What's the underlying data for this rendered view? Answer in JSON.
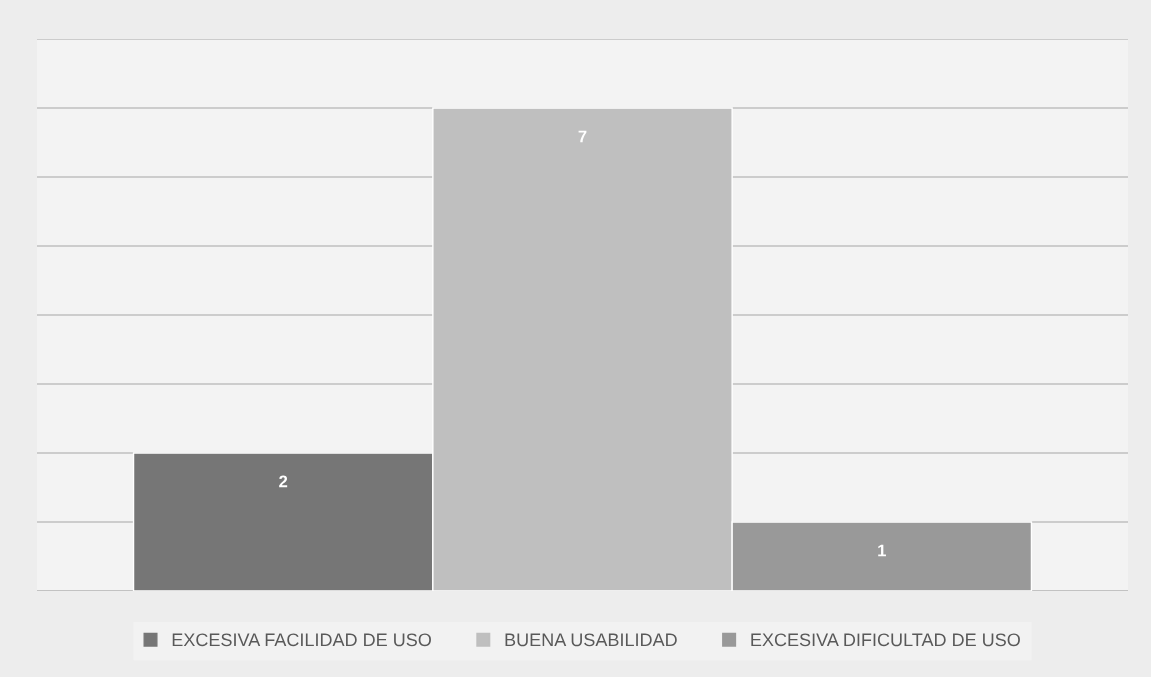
{
  "chart_data": {
    "type": "bar",
    "categories": [
      null
    ],
    "series": [
      {
        "name": "EXCESIVA FACILIDAD DE USO",
        "color": "#767676",
        "values": [
          2
        ]
      },
      {
        "name": "BUENA USABILIDAD",
        "color": "#bfbfbf",
        "values": [
          7
        ]
      },
      {
        "name": "EXCESIVA DIFICULTAD DE USO",
        "color": "#999999",
        "values": [
          1
        ]
      }
    ],
    "ylim": [
      0,
      8
    ],
    "yticks": [
      {
        "value": 0,
        "label": null
      },
      {
        "value": 1,
        "label": null
      },
      {
        "value": 2,
        "label": null
      },
      {
        "value": 3,
        "label": null
      },
      {
        "value": 4,
        "label": null
      },
      {
        "value": 5,
        "label": null
      },
      {
        "value": 6,
        "label": null
      },
      {
        "value": 7,
        "label": null
      },
      {
        "value": 8,
        "label": null
      }
    ],
    "grid": "y",
    "legend": "bottom",
    "data_labels": true
  }
}
